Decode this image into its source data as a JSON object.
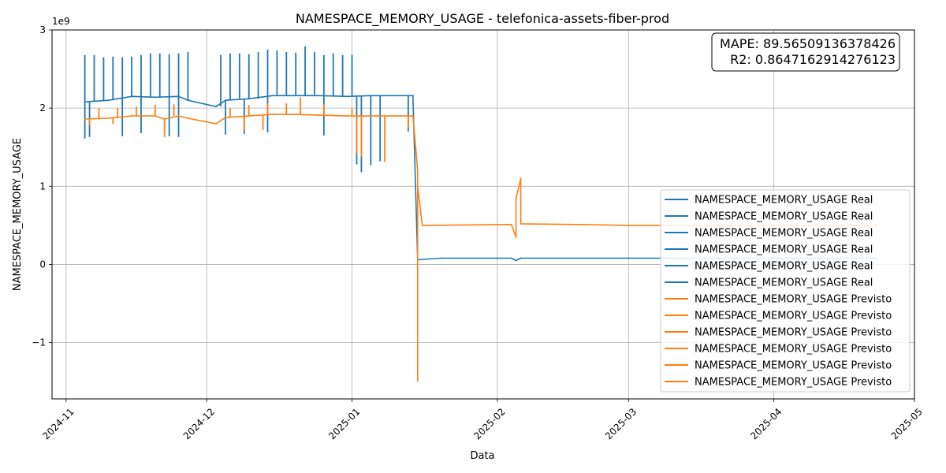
{
  "chart_data": {
    "type": "line",
    "title": "NAMESPACE_MEMORY_USAGE - telefonica-assets-fiber-prod",
    "xlabel": "Data",
    "ylabel": "NAMESPACE_MEMORY_USAGE",
    "y_multiplier": "1e9",
    "x_ticks": [
      "2024-11",
      "2024-12",
      "2025-01",
      "2025-02",
      "2025-03",
      "2025-04",
      "2025-05"
    ],
    "y_ticks": [
      "−1",
      "0",
      "1",
      "2",
      "3"
    ],
    "y_tick_values": [
      -1,
      0,
      1,
      2,
      3
    ],
    "xlim": [
      "2024-10-29",
      "2025-05-01"
    ],
    "ylim": [
      -1.72,
      3.0
    ],
    "grid": true,
    "legend_position": "lower-right",
    "metrics_box": {
      "line1": "MAPE: 89.56509136378426",
      "line2": "R2: 0.8647162914276123"
    },
    "colors": {
      "real": "#1f77b4",
      "previsto": "#ff7f0e"
    },
    "series": [
      {
        "name": "NAMESPACE_MEMORY_USAGE Real",
        "color": "#1f77b4",
        "points": [
          [
            "2024-11-05",
            2.08
          ],
          [
            "2024-11-10",
            2.1
          ],
          [
            "2024-11-15",
            2.15
          ],
          [
            "2024-11-20",
            2.14
          ],
          [
            "2024-11-25",
            2.15
          ],
          [
            "2024-11-27",
            2.1
          ],
          [
            "2024-12-03",
            2.02
          ],
          [
            "2024-12-05",
            2.1
          ],
          [
            "2024-12-10",
            2.12
          ],
          [
            "2024-12-15",
            2.16
          ],
          [
            "2024-12-20",
            2.16
          ],
          [
            "2024-12-25",
            2.16
          ],
          [
            "2024-12-31",
            2.15
          ],
          [
            "2025-01-05",
            2.16
          ],
          [
            "2025-01-10",
            2.16
          ],
          [
            "2025-01-14",
            2.16
          ],
          [
            "2025-01-15",
            0.06
          ],
          [
            "2025-01-20",
            0.08
          ],
          [
            "2025-02-01",
            0.08
          ],
          [
            "2025-02-04",
            0.08
          ],
          [
            "2025-02-05",
            0.05
          ],
          [
            "2025-02-06",
            0.08
          ],
          [
            "2025-03-01",
            0.08
          ],
          [
            "2025-04-01",
            0.08
          ],
          [
            "2025-04-23",
            0.08
          ]
        ],
        "spikes": [
          [
            "2024-11-05",
            2.68
          ],
          [
            "2024-11-07",
            2.68
          ],
          [
            "2024-11-09",
            2.65
          ],
          [
            "2024-11-11",
            2.66
          ],
          [
            "2024-11-13",
            2.65
          ],
          [
            "2024-11-15",
            2.66
          ],
          [
            "2024-11-17",
            2.68
          ],
          [
            "2024-11-19",
            2.7
          ],
          [
            "2024-11-21",
            2.7
          ],
          [
            "2024-11-23",
            2.69
          ],
          [
            "2024-11-25",
            2.7
          ],
          [
            "2024-11-27",
            2.72
          ],
          [
            "2024-12-04",
            2.68
          ],
          [
            "2024-12-06",
            2.7
          ],
          [
            "2024-12-08",
            2.7
          ],
          [
            "2024-12-10",
            2.69
          ],
          [
            "2024-12-12",
            2.72
          ],
          [
            "2024-12-14",
            2.75
          ],
          [
            "2024-12-16",
            2.74
          ],
          [
            "2024-12-18",
            2.72
          ],
          [
            "2024-12-20",
            2.71
          ],
          [
            "2024-12-22",
            2.79
          ],
          [
            "2024-12-24",
            2.72
          ],
          [
            "2024-12-26",
            2.68
          ],
          [
            "2024-12-28",
            2.7
          ],
          [
            "2024-12-30",
            2.68
          ],
          [
            "2025-01-01",
            2.68
          ]
        ],
        "dips": [
          [
            "2024-11-05",
            1.61
          ],
          [
            "2024-11-06",
            1.63
          ],
          [
            "2024-11-13",
            1.64
          ],
          [
            "2024-11-17",
            1.68
          ],
          [
            "2024-11-23",
            1.64
          ],
          [
            "2024-11-25",
            1.63
          ],
          [
            "2024-12-05",
            1.66
          ],
          [
            "2024-12-09",
            1.67
          ],
          [
            "2024-12-14",
            1.69
          ],
          [
            "2024-12-26",
            1.65
          ],
          [
            "2025-01-02",
            1.28
          ],
          [
            "2025-01-03",
            1.18
          ],
          [
            "2025-01-05",
            1.27
          ],
          [
            "2025-01-07",
            1.32
          ],
          [
            "2025-01-13",
            1.7
          ]
        ]
      },
      {
        "name": "NAMESPACE_MEMORY_USAGE Previsto",
        "color": "#ff7f0e",
        "points": [
          [
            "2024-11-05",
            1.86
          ],
          [
            "2024-11-10",
            1.87
          ],
          [
            "2024-11-15",
            1.9
          ],
          [
            "2024-11-20",
            1.9
          ],
          [
            "2024-11-22",
            1.86
          ],
          [
            "2024-11-25",
            1.9
          ],
          [
            "2024-11-27",
            1.87
          ],
          [
            "2024-12-03",
            1.8
          ],
          [
            "2024-12-05",
            1.88
          ],
          [
            "2024-12-10",
            1.9
          ],
          [
            "2024-12-15",
            1.92
          ],
          [
            "2024-12-20",
            1.92
          ],
          [
            "2024-12-25",
            1.91
          ],
          [
            "2024-12-31",
            1.9
          ],
          [
            "2025-01-05",
            1.9
          ],
          [
            "2025-01-10",
            1.9
          ],
          [
            "2025-01-14",
            1.9
          ],
          [
            "2025-01-15",
            1.2
          ],
          [
            "2025-01-15",
            -1.49
          ],
          [
            "2025-01-15",
            1.0
          ],
          [
            "2025-01-16",
            0.5
          ],
          [
            "2025-02-01",
            0.51
          ],
          [
            "2025-02-04",
            0.51
          ],
          [
            "2025-02-05",
            0.35
          ],
          [
            "2025-02-05",
            0.85
          ],
          [
            "2025-02-06",
            1.1
          ],
          [
            "2025-02-06",
            0.52
          ],
          [
            "2025-02-20",
            0.51
          ],
          [
            "2025-03-01",
            0.5
          ],
          [
            "2025-04-01",
            0.5
          ],
          [
            "2025-04-23",
            0.5
          ]
        ],
        "spikes": [
          [
            "2024-11-08",
            2.0
          ],
          [
            "2024-11-12",
            2.0
          ],
          [
            "2024-11-16",
            2.02
          ],
          [
            "2024-11-20",
            2.04
          ],
          [
            "2024-11-24",
            2.05
          ],
          [
            "2024-12-06",
            2.0
          ],
          [
            "2024-12-10",
            2.04
          ],
          [
            "2024-12-14",
            2.06
          ],
          [
            "2024-12-18",
            2.06
          ],
          [
            "2024-12-21",
            2.14
          ],
          [
            "2024-12-26",
            2.05
          ],
          [
            "2025-01-01",
            2.0
          ]
        ],
        "dips": [
          [
            "2024-11-06",
            1.78
          ],
          [
            "2024-11-11",
            1.8
          ],
          [
            "2024-11-22",
            1.63
          ],
          [
            "2024-12-09",
            1.72
          ],
          [
            "2024-12-13",
            1.72
          ],
          [
            "2025-01-02",
            1.42
          ],
          [
            "2025-01-03",
            1.38
          ],
          [
            "2025-01-08",
            1.31
          ],
          [
            "2025-01-13",
            1.75
          ]
        ]
      }
    ]
  }
}
